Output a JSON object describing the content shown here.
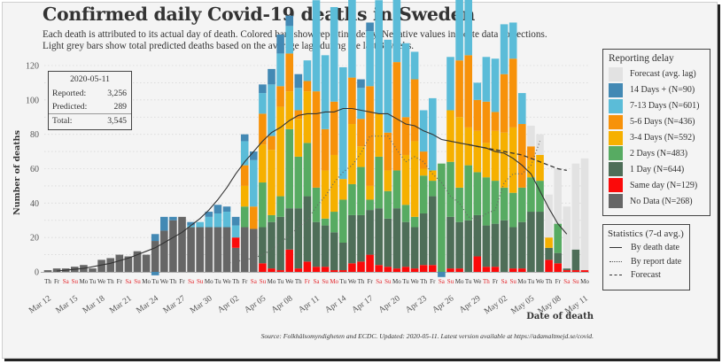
{
  "header": {
    "title": "Confirmed daily Covid-19 deaths in Sweden",
    "subtitle_line1": "Each death is attributed to its actual day of death. Colored bars show reporting delay. Negative values indicate data corrections.",
    "subtitle_line2": "Light grey bars show total predicted deaths based on the average lags during the last 3 weeks."
  },
  "info_box": {
    "date": "2020-05-11",
    "reported_label": "Reported:",
    "reported_value": "3,256",
    "predicted_label": "Predicted:",
    "predicted_value": "289",
    "total_label": "Total:",
    "total_value": "3,545"
  },
  "legend_delay": {
    "title": "Reporting delay",
    "items": [
      {
        "key": "forecast",
        "label": "Forecast (avg. lag)",
        "color": "#e2e2e2"
      },
      {
        "key": "d14",
        "label": "14 Days + (N=90)",
        "color": "#4389b4"
      },
      {
        "key": "d7_13",
        "label": "7-13 Days (N=601)",
        "color": "#5bbcd8"
      },
      {
        "key": "d5_6",
        "label": "5-6 Days (N=436)",
        "color": "#f7920a"
      },
      {
        "key": "d3_4",
        "label": "3-4 Days (N=592)",
        "color": "#f6b000"
      },
      {
        "key": "d2",
        "label": "2 Days (N=483)",
        "color": "#57ab62"
      },
      {
        "key": "d1",
        "label": "1 Day (N=644)",
        "color": "#4e6e58"
      },
      {
        "key": "d0",
        "label": "Same day (N=129)",
        "color": "#fb0a0a"
      },
      {
        "key": "nodata",
        "label": "No Data (N=268)",
        "color": "#666666"
      }
    ]
  },
  "legend_stats": {
    "title": "Statistics (7-d avg.)",
    "items": [
      {
        "style": "solid",
        "label": "By death date"
      },
      {
        "style": "dotted",
        "label": "By report date"
      },
      {
        "style": "dashed",
        "label": "Forecast"
      }
    ]
  },
  "footer": {
    "source": "Source: Folkhälsomyndigheten and ECDC. Updated: 2020-05-11. Latest version available at https://adamaltmejd.se/covid."
  },
  "chart_data": {
    "type": "bar",
    "stacked": true,
    "title": "Confirmed daily Covid-19 deaths in Sweden",
    "xlabel": "Date of death",
    "ylabel": "Number of deaths",
    "ylim": [
      0,
      120
    ],
    "yticks": [
      0,
      20,
      40,
      60,
      80,
      100,
      120
    ],
    "grid": true,
    "legend_position": "right",
    "weekdays": [
      "Th",
      "Fr",
      "Sa",
      "Su",
      "Mo",
      "Tu",
      "We",
      "Th",
      "Fr",
      "Sa",
      "Su",
      "Mo",
      "Tu",
      "We",
      "Th",
      "Fr",
      "Sa",
      "Su",
      "Mo",
      "Tu",
      "We",
      "Th",
      "Fr",
      "Sa",
      "Su",
      "Mo",
      "Tu",
      "We",
      "Th",
      "Fr",
      "Sa",
      "Su",
      "Mo",
      "Tu",
      "We",
      "Th",
      "Fr",
      "Sa",
      "Su",
      "Mo",
      "Tu",
      "We",
      "Th",
      "Fr",
      "Sa",
      "Su",
      "Mo",
      "Tu",
      "We",
      "Th",
      "Fr",
      "Sa",
      "Su",
      "Mo",
      "Tu",
      "We",
      "Th",
      "Fr",
      "Sa",
      "Su",
      "Mo"
    ],
    "red_day_indices": [
      2,
      3,
      9,
      10,
      16,
      17,
      23,
      24,
      29,
      30,
      31,
      32,
      37,
      38,
      44,
      45,
      49,
      51,
      52,
      58,
      59
    ],
    "date_ticks": [
      {
        "index": 0,
        "label": "Mar 12"
      },
      {
        "index": 3,
        "label": "Mar 15"
      },
      {
        "index": 6,
        "label": "Mar 18"
      },
      {
        "index": 9,
        "label": "Mar 21"
      },
      {
        "index": 12,
        "label": "Mar 24"
      },
      {
        "index": 15,
        "label": "Mar 27"
      },
      {
        "index": 18,
        "label": "Mar 30"
      },
      {
        "index": 21,
        "label": "Apr 02"
      },
      {
        "index": 24,
        "label": "Apr 05"
      },
      {
        "index": 27,
        "label": "Apr 08"
      },
      {
        "index": 30,
        "label": "Apr 11"
      },
      {
        "index": 33,
        "label": "Apr 14"
      },
      {
        "index": 36,
        "label": "Apr 17"
      },
      {
        "index": 39,
        "label": "Apr 20"
      },
      {
        "index": 42,
        "label": "Apr 23"
      },
      {
        "index": 45,
        "label": "Apr 26"
      },
      {
        "index": 48,
        "label": "Apr 29"
      },
      {
        "index": 51,
        "label": "May 02"
      },
      {
        "index": 54,
        "label": "May 05"
      },
      {
        "index": 57,
        "label": "May 08"
      },
      {
        "index": 60,
        "label": "May 11"
      }
    ],
    "series_order": [
      "nodata",
      "d0",
      "d1",
      "d2",
      "d3_4",
      "d5_6",
      "d7_13",
      "d14",
      "forecast"
    ],
    "series": [
      {
        "name": "No Data",
        "key": "nodata",
        "values": [
          1,
          2,
          2,
          3,
          4,
          2,
          7,
          8,
          10,
          9,
          12,
          10,
          18,
          24,
          30,
          32,
          26,
          26,
          26,
          26,
          26,
          14,
          26,
          25,
          0,
          0,
          0,
          0,
          0,
          0,
          0,
          0,
          0,
          0,
          0,
          0,
          0,
          0,
          0,
          0,
          0,
          0,
          0,
          0,
          0,
          0,
          0,
          0,
          0,
          0,
          0,
          0,
          0,
          0,
          0,
          0,
          0,
          0,
          0,
          0,
          0
        ]
      },
      {
        "name": "Same day",
        "key": "d0",
        "values": [
          0,
          0,
          0,
          0,
          0,
          0,
          0,
          0,
          0,
          0,
          0,
          0,
          0,
          0,
          0,
          0,
          0,
          0,
          0,
          0,
          0,
          6,
          0,
          0,
          5,
          2,
          1,
          13,
          2,
          6,
          3,
          3,
          1,
          1,
          5,
          6,
          10,
          4,
          3,
          2,
          3,
          2,
          4,
          4,
          0,
          2,
          2,
          0,
          9,
          3,
          3,
          0,
          2,
          2,
          0,
          0,
          7,
          5,
          1,
          1,
          1
        ]
      },
      {
        "name": "1 Day",
        "key": "d1",
        "values": [
          0,
          0,
          0,
          0,
          0,
          0,
          0,
          0,
          0,
          0,
          0,
          0,
          0,
          0,
          0,
          0,
          0,
          0,
          0,
          0,
          0,
          0,
          0,
          0,
          21,
          27,
          31,
          24,
          35,
          38,
          26,
          24,
          22,
          16,
          28,
          27,
          26,
          33,
          28,
          35,
          26,
          24,
          30,
          40,
          0,
          30,
          27,
          30,
          24,
          24,
          25,
          30,
          24,
          27,
          35,
          35,
          7,
          6,
          1,
          12,
          0
        ]
      },
      {
        "name": "2 Days",
        "key": "d2",
        "values": [
          0,
          0,
          0,
          0,
          0,
          0,
          0,
          0,
          0,
          0,
          0,
          0,
          0,
          0,
          0,
          0,
          0,
          0,
          0,
          0,
          0,
          0,
          12,
          0,
          26,
          4,
          12,
          46,
          30,
          31,
          20,
          4,
          12,
          25,
          18,
          28,
          6,
          30,
          16,
          22,
          10,
          6,
          22,
          9,
          63,
          32,
          20,
          32,
          25,
          28,
          25,
          19,
          20,
          20,
          20,
          18,
          0,
          17,
          0,
          0,
          0
        ]
      },
      {
        "name": "3-4 Days",
        "key": "d3_4",
        "values": [
          0,
          0,
          0,
          0,
          0,
          0,
          0,
          0,
          0,
          0,
          0,
          0,
          0,
          0,
          0,
          0,
          0,
          0,
          0,
          0,
          0,
          0,
          12,
          0,
          22,
          38,
          52,
          22,
          22,
          30,
          0,
          28,
          33,
          12,
          35,
          12,
          8,
          25,
          12,
          0,
          29,
          44,
          4,
          6,
          0,
          30,
          41,
          22,
          24,
          20,
          29,
          32,
          38,
          0,
          10,
          15,
          6,
          0,
          0,
          0,
          0
        ]
      },
      {
        "name": "5-6 Days",
        "key": "d5_6",
        "values": [
          0,
          0,
          0,
          0,
          0,
          0,
          0,
          0,
          0,
          0,
          0,
          0,
          0,
          0,
          0,
          0,
          0,
          0,
          0,
          0,
          0,
          0,
          12,
          13,
          18,
          8,
          12,
          22,
          5,
          6,
          56,
          24,
          31,
          0,
          27,
          16,
          58,
          0,
          22,
          63,
          22,
          36,
          10,
          0,
          0,
          0,
          33,
          42,
          18,
          24,
          11,
          34,
          40,
          37,
          8,
          0,
          0,
          0,
          0,
          0,
          0
        ]
      },
      {
        "name": "7-13 Days",
        "key": "d7_13",
        "values": [
          0,
          0,
          0,
          0,
          0,
          0,
          0,
          0,
          0,
          0,
          0,
          0,
          0,
          0,
          0,
          0,
          1,
          3,
          6,
          8,
          9,
          7,
          14,
          27,
          12,
          30,
          19,
          16,
          13,
          12,
          53,
          43,
          55,
          65,
          48,
          18,
          32,
          66,
          54,
          52,
          43,
          16,
          24,
          42,
          0,
          31,
          40,
          47,
          10,
          26,
          31,
          29,
          21,
          18,
          0,
          0,
          0,
          0,
          0,
          0,
          0
        ]
      },
      {
        "name": "14 Days +",
        "key": "d14",
        "values": [
          0,
          0,
          0,
          0,
          0,
          0,
          0,
          0,
          0,
          0,
          0,
          0,
          4,
          8,
          2,
          0,
          2,
          0,
          3,
          5,
          3,
          5,
          4,
          5,
          5,
          9,
          11,
          6,
          8,
          0,
          0,
          0,
          0,
          0,
          2,
          5,
          5,
          0,
          0,
          0,
          0,
          0,
          0,
          0,
          0,
          0,
          0,
          0,
          0,
          0,
          0,
          0,
          0,
          0,
          0,
          0,
          0,
          0,
          0,
          0,
          0
        ]
      },
      {
        "name": "Forecast (avg. lag)",
        "key": "forecast",
        "values": [
          0,
          0,
          0,
          0,
          0,
          0,
          0,
          0,
          0,
          0,
          0,
          0,
          0,
          0,
          0,
          0,
          0,
          0,
          0,
          0,
          0,
          0,
          0,
          0,
          0,
          0,
          0,
          0,
          0,
          0,
          0,
          0,
          0,
          0,
          0,
          0,
          0,
          0,
          0,
          0,
          0,
          0,
          0,
          0,
          0,
          0,
          0,
          0,
          0,
          0,
          0,
          0,
          0,
          0,
          12,
          12,
          25,
          32,
          36,
          50,
          65
        ]
      }
    ],
    "negative_corrections": [
      {
        "index": 12,
        "key": "d14",
        "value": -2
      },
      {
        "index": 44,
        "key": "d14",
        "value": -3
      }
    ],
    "lines": [
      {
        "name": "By death date",
        "style": "solid",
        "values": [
          null,
          0.5,
          1,
          1.5,
          2,
          3,
          4,
          5,
          6.5,
          8,
          10,
          12,
          14,
          17,
          20,
          23,
          27,
          31,
          36,
          42,
          49,
          57,
          64,
          70,
          76,
          81,
          84,
          88,
          91,
          92,
          92,
          93,
          93,
          95,
          95,
          94,
          93,
          92,
          92,
          89,
          86,
          85,
          82,
          80,
          77,
          76,
          75,
          74,
          73,
          72,
          70,
          69,
          66,
          62,
          57,
          47,
          37,
          28,
          22,
          null,
          null
        ]
      },
      {
        "name": "By report date",
        "style": "dotted",
        "values": [
          null,
          null,
          null,
          null,
          null,
          null,
          null,
          null,
          null,
          null,
          null,
          null,
          null,
          null,
          null,
          null,
          null,
          null,
          null,
          null,
          5,
          6,
          7,
          8,
          10,
          13,
          17,
          21,
          26,
          30,
          38,
          44,
          52,
          58,
          62,
          69,
          79,
          79,
          79,
          71,
          64,
          67,
          64,
          57,
          52,
          44,
          40,
          32,
          30,
          34,
          36,
          52,
          57,
          57,
          62,
          76,
          null,
          null,
          null,
          null,
          null
        ]
      },
      {
        "name": "Forecast",
        "style": "dashed",
        "values": [
          null,
          null,
          null,
          null,
          null,
          null,
          null,
          null,
          null,
          null,
          null,
          null,
          null,
          null,
          null,
          null,
          null,
          null,
          null,
          null,
          null,
          null,
          null,
          null,
          null,
          null,
          null,
          null,
          null,
          null,
          null,
          null,
          null,
          null,
          null,
          null,
          null,
          null,
          null,
          null,
          null,
          null,
          null,
          null,
          null,
          null,
          null,
          74,
          73,
          72,
          71,
          70,
          69,
          68,
          66,
          64,
          62,
          60,
          59,
          null,
          null
        ]
      }
    ]
  }
}
